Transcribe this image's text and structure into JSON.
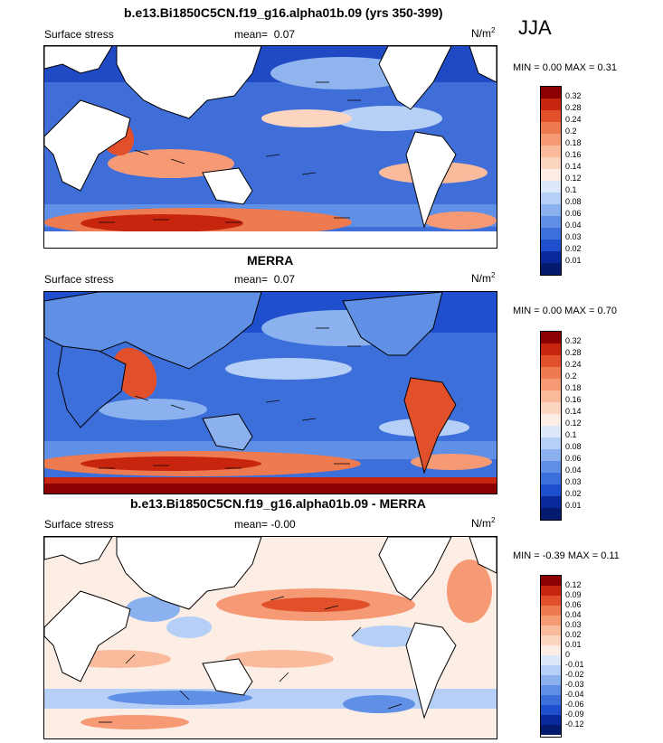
{
  "season": "JJA",
  "panels": [
    {
      "title": "b.e13.Bi1850C5CN.f19_g16.alpha01b.09 (yrs 350-399)",
      "left_label": "Surface stress",
      "mean_label": "mean=",
      "mean_value": "0.07",
      "units": "N/m",
      "units_sup": "2",
      "minmax": "MIN =   0.00 MAX =   0.31",
      "colorbar": {
        "labels": [
          "0.32",
          "0.28",
          "0.24",
          "0.2",
          "0.18",
          "0.16",
          "0.14",
          "0.12",
          "0.1",
          "0.08",
          "0.06",
          "0.04",
          "0.03",
          "0.02",
          "0.01"
        ],
        "colors": [
          "#8b0000",
          "#c8250f",
          "#e1502a",
          "#ee7a4f",
          "#f59a75",
          "#f9bb9c",
          "#fbd5bf",
          "#fdeee5",
          "#dde9fb",
          "#b5cff6",
          "#8bb2ef",
          "#5f90e5",
          "#3d6fdb",
          "#1f4fcc",
          "#0a2a9c",
          "#031a6e"
        ]
      }
    },
    {
      "title": "MERRA",
      "left_label": "Surface stress",
      "mean_label": "mean=",
      "mean_value": "0.07",
      "units": "N/m",
      "units_sup": "2",
      "minmax": "MIN =   0.00 MAX =   0.70",
      "colorbar": {
        "labels": [
          "0.32",
          "0.28",
          "0.24",
          "0.2",
          "0.18",
          "0.16",
          "0.14",
          "0.12",
          "0.1",
          "0.08",
          "0.06",
          "0.04",
          "0.03",
          "0.02",
          "0.01"
        ],
        "colors": [
          "#8b0000",
          "#c8250f",
          "#e1502a",
          "#ee7a4f",
          "#f59a75",
          "#f9bb9c",
          "#fbd5bf",
          "#fdeee5",
          "#dde9fb",
          "#b5cff6",
          "#8bb2ef",
          "#5f90e5",
          "#3d6fdb",
          "#1f4fcc",
          "#0a2a9c",
          "#031a6e"
        ]
      }
    },
    {
      "title": "b.e13.Bi1850C5CN.f19_g16.alpha01b.09 - MERRA",
      "left_label": "Surface stress",
      "mean_label": "mean=",
      "mean_value": "-0.00",
      "units": "N/m",
      "units_sup": "2",
      "minmax": "MIN = -0.39 MAX =   0.11",
      "colorbar": {
        "labels": [
          "0.12",
          "0.09",
          "0.06",
          "0.04",
          "0.03",
          "0.02",
          "0.01",
          "0",
          "-0.01",
          "-0.02",
          "-0.03",
          "-0.04",
          "-0.06",
          "-0.09",
          "-0.12"
        ],
        "colors": [
          "#8b0000",
          "#c8250f",
          "#e1502a",
          "#ee7a4f",
          "#f59a75",
          "#f9bb9c",
          "#fbd5bf",
          "#fdeee5",
          "#dde9fb",
          "#b5cff6",
          "#8bb2ef",
          "#5f90e5",
          "#3d6fdb",
          "#1f4fcc",
          "#0a2a9c",
          "#031a6e"
        ]
      }
    }
  ]
}
